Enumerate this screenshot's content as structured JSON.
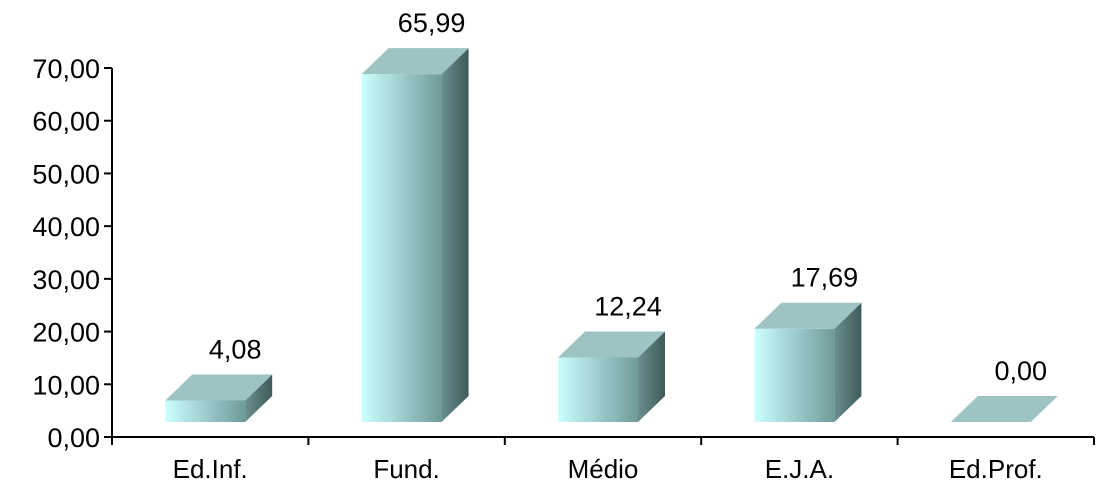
{
  "chart_data": {
    "type": "bar",
    "categories": [
      "Ed.Inf.",
      "Fund.",
      "Médio",
      "E.J.A.",
      "Ed.Prof."
    ],
    "values": [
      4.08,
      65.99,
      12.24,
      17.69,
      0.0
    ],
    "data_labels": [
      "4,08",
      "65,99",
      "12,24",
      "17,69",
      "0,00"
    ],
    "ylim": [
      0,
      70
    ],
    "yticks": [
      0,
      10,
      20,
      30,
      40,
      50,
      60,
      70
    ],
    "ytick_labels": [
      "0,00",
      "10,00",
      "20,00",
      "30,00",
      "40,00",
      "50,00",
      "60,00",
      "70,00"
    ],
    "title": "",
    "xlabel": "",
    "ylabel": "",
    "grid": false,
    "legend": "none",
    "style": "3d-bar",
    "colors": {
      "front_light": "#ccffff",
      "front_dark": "#6f9a9a",
      "top": "#9ec3c3",
      "side_light": "#6a8f8f",
      "side_dark": "#3f5a5a",
      "axis": "#000000"
    }
  }
}
